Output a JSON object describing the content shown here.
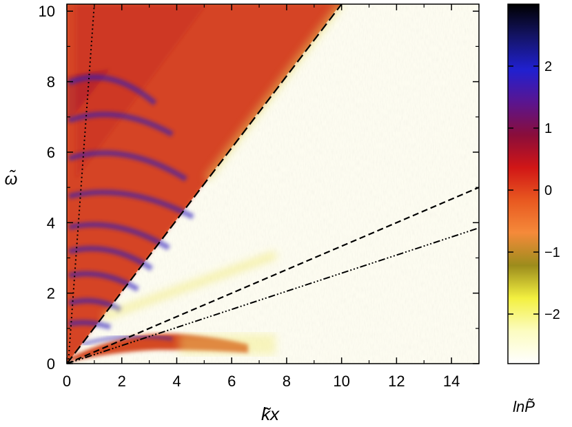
{
  "chart_data": [
    {
      "type": "heatmap",
      "title": "",
      "xlabel": "k̃x",
      "ylabel": "ω̃",
      "xlim": [
        0,
        15
      ],
      "ylim": [
        0,
        10.2
      ],
      "x_ticks": [
        "0",
        "2",
        "4",
        "6",
        "8",
        "10",
        "12",
        "14"
      ],
      "y_ticks": [
        "0",
        "2",
        "4",
        "6",
        "8",
        "10"
      ],
      "grid": false,
      "series": [
        {
          "style": "long-dashed",
          "x": [
            0,
            10
          ],
          "y": [
            0,
            10.2
          ]
        },
        {
          "style": "dashed",
          "x": [
            0,
            15
          ],
          "y": [
            0,
            5.0
          ]
        },
        {
          "style": "dash-triple-dot",
          "x": [
            0,
            15
          ],
          "y": [
            0,
            3.85
          ]
        },
        {
          "style": "dotted",
          "x": [
            0.05,
            1.0
          ],
          "y": [
            0,
            10.2
          ]
        }
      ],
      "regions": [
        {
          "name": "high-power wedge",
          "bounds": "omega > kx, kx < 10",
          "color": "#e0562a"
        },
        {
          "name": "low-frequency band",
          "y_range": [
            0.1,
            0.6
          ],
          "x_range": [
            0.3,
            6.5
          ],
          "color": "#d9531f"
        }
      ]
    },
    {
      "type": "colorbar",
      "label": "lnP̃",
      "range": [
        -2.8,
        3
      ],
      "ticks": [
        "2",
        "1",
        "0",
        "−1",
        "−2"
      ],
      "colormap": [
        "#ffffff",
        "#fcfcc0",
        "#f3f040",
        "#9c8c1c",
        "#f58a3a",
        "#e85820",
        "#d11616",
        "#8a0d3a",
        "#5a1590",
        "#2020d0",
        "#141468",
        "#000000"
      ]
    }
  ]
}
